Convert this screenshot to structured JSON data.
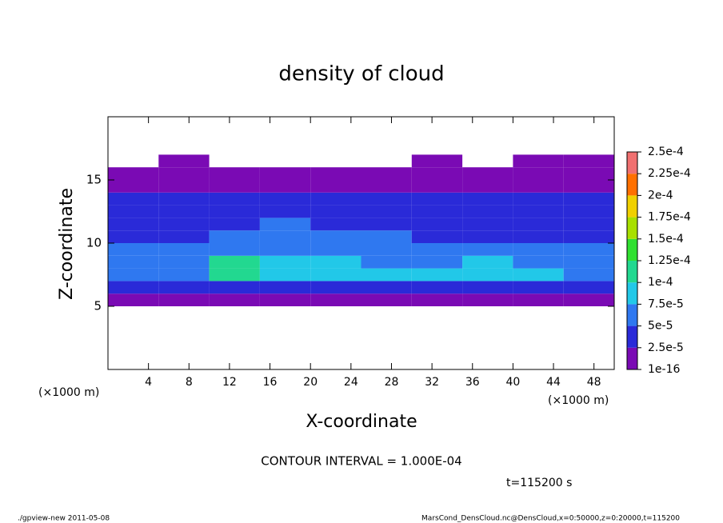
{
  "chart_data": {
    "type": "contour",
    "title": "density of cloud",
    "x_label": "X-coordinate",
    "y_label": "Z-coordinate",
    "x_unit": "(×1000 m)",
    "contour_note": "CONTOUR INTERVAL = 1.000E-04",
    "time_note": "t=115200 s",
    "footer_left": "./gpview-new  2011-05-08",
    "footer_right": "MarsCond_DensCloud.nc@DensCloud,x=0:50000,z=0:20000,t=115200",
    "xlim": [
      0,
      50
    ],
    "ylim": [
      0,
      20
    ],
    "xticks": [
      4,
      8,
      12,
      16,
      20,
      24,
      28,
      32,
      36,
      40,
      44,
      48
    ],
    "yticks": [
      5,
      10,
      15
    ],
    "x": [
      2.5,
      7.5,
      12.5,
      17.5,
      22.5,
      27.5,
      32.5,
      37.5,
      42.5,
      47.5
    ],
    "z": [
      5.5,
      6.5,
      7.5,
      8.5,
      9.5,
      10.5,
      11.5,
      12.5,
      13.5,
      14.5,
      15.5,
      16.5
    ],
    "field": [
      [
        1.2e-05,
        1.2e-05,
        1.2e-05,
        1.2e-05,
        1.2e-05,
        1.2e-05,
        1.2e-05,
        1.2e-05,
        1.2e-05,
        1.2e-05
      ],
      [
        4e-05,
        4e-05,
        3.5e-05,
        4e-05,
        4e-05,
        4e-05,
        4e-05,
        4e-05,
        4e-05,
        4e-05
      ],
      [
        7e-05,
        7e-05,
        0.000105,
        8e-05,
        8e-05,
        7.5e-05,
        8e-05,
        8.5e-05,
        8e-05,
        7e-05
      ],
      [
        6.5e-05,
        6.5e-05,
        0.00011,
        8e-05,
        7.5e-05,
        6.5e-05,
        7e-05,
        7.5e-05,
        7e-05,
        6.5e-05
      ],
      [
        6e-05,
        5e-05,
        6.5e-05,
        7e-05,
        6.5e-05,
        6e-05,
        6e-05,
        6e-05,
        5.5e-05,
        5e-05
      ],
      [
        4.5e-05,
        3e-05,
        5.5e-05,
        6e-05,
        5.5e-05,
        5e-05,
        4.5e-05,
        4.5e-05,
        4e-05,
        4e-05
      ],
      [
        3e-05,
        2.8e-05,
        4e-05,
        5e-05,
        4.5e-05,
        4e-05,
        3e-05,
        3e-05,
        3e-05,
        3e-05
      ],
      [
        4e-05,
        4e-05,
        4e-05,
        3e-05,
        2.5e-05,
        3e-05,
        3.5e-05,
        3e-05,
        4e-05,
        4e-05
      ],
      [
        4.5e-05,
        4.5e-05,
        4e-05,
        2.6e-05,
        2.6e-05,
        3.5e-05,
        4e-05,
        2.6e-05,
        2.6e-05,
        3e-05
      ],
      [
        2e-05,
        2e-05,
        2e-05,
        2e-05,
        2e-05,
        2e-05,
        2e-05,
        2e-05,
        2e-05,
        2e-05
      ],
      [
        1.2e-05,
        1.2e-05,
        1.2e-05,
        1.2e-05,
        1.2e-05,
        1.2e-05,
        1.2e-05,
        1.2e-05,
        1.2e-05,
        1.2e-05
      ],
      [
        null,
        1e-05,
        null,
        null,
        null,
        null,
        1e-05,
        null,
        1e-05,
        1e-05
      ]
    ],
    "levels": [
      {
        "value": 1e-16,
        "label": "1e-16"
      },
      {
        "value": 2.5e-05,
        "label": "2.5e-5"
      },
      {
        "value": 5e-05,
        "label": "5e-5"
      },
      {
        "value": 7.5e-05,
        "label": "7.5e-5"
      },
      {
        "value": 0.0001,
        "label": "1e-4"
      },
      {
        "value": 0.000125,
        "label": "1.25e-4"
      },
      {
        "value": 0.00015,
        "label": "1.5e-4"
      },
      {
        "value": 0.000175,
        "label": "1.75e-4"
      },
      {
        "value": 0.0002,
        "label": "2e-4"
      },
      {
        "value": 0.000225,
        "label": "2.25e-4"
      },
      {
        "value": 0.00025,
        "label": "2.5e-4"
      }
    ],
    "colors": [
      "#7a0ab4",
      "#2a2ad8",
      "#2f78f0",
      "#22c8e8",
      "#22d890",
      "#30e030",
      "#a8e000",
      "#f0d000",
      "#ff7000",
      "#f07070"
    ]
  }
}
